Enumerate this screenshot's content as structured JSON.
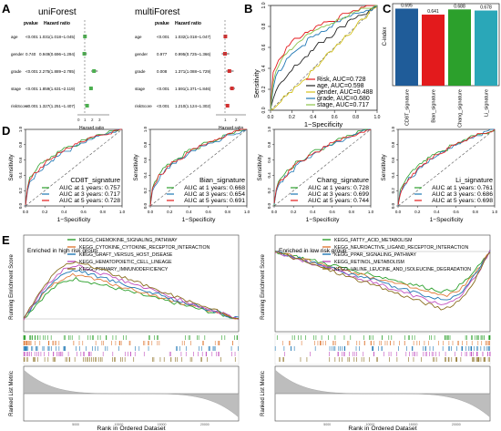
{
  "panels": {
    "A": {
      "letter": "A",
      "left": {
        "title": "uniForest",
        "col_pvalue": "pvalue",
        "col_hr": "Hazard ratio",
        "xlabel": "Hazard ratio",
        "rows": [
          {
            "var": "age",
            "p": "<0.001",
            "hr": "1.031(1.018~1.045)",
            "est": 1.031,
            "lo": 1.018,
            "hi": 1.045
          },
          {
            "var": "gender",
            "p": "0.740",
            "hr": "0.949(0.696~1.294)",
            "est": 0.949,
            "lo": 0.696,
            "hi": 1.294
          },
          {
            "var": "grade",
            "p": "<0.001",
            "hr": "2.275(1.889~2.785)",
            "est": 2.275,
            "lo": 1.889,
            "hi": 2.785
          },
          {
            "var": "stage",
            "p": "<0.001",
            "hr": "1.859(1.631~2.119)",
            "est": 1.859,
            "lo": 1.631,
            "hi": 2.119
          },
          {
            "var": "riskScore",
            "p": "<0.001",
            "hr": "1.327(1.251~1.407)",
            "est": 1.327,
            "lo": 1.251,
            "hi": 1.407
          }
        ]
      },
      "right": {
        "title": "multiForest",
        "col_pvalue": "pvalue",
        "col_hr": "Hazard ratio",
        "xlabel": "Hazard ratio",
        "rows": [
          {
            "var": "age",
            "p": "<0.001",
            "hr": "1.032(1.018~1.047)",
            "est": 1.032,
            "lo": 1.018,
            "hi": 1.047
          },
          {
            "var": "gender",
            "p": "0.977",
            "hr": "0.995(0.725~1.366)",
            "est": 0.995,
            "lo": 0.725,
            "hi": 1.366
          },
          {
            "var": "grade",
            "p": "0.008",
            "hr": "1.371(1.088~1.729)",
            "est": 1.371,
            "lo": 1.088,
            "hi": 1.729
          },
          {
            "var": "stage",
            "p": "<0.001",
            "hr": "1.591(1.371~1.846)",
            "est": 1.591,
            "lo": 1.371,
            "hi": 1.846
          },
          {
            "var": "riskScore",
            "p": "<0.001",
            "hr": "1.210(1.124~1.302)",
            "est": 1.21,
            "lo": 1.124,
            "hi": 1.302
          }
        ]
      }
    },
    "B": {
      "letter": "B",
      "ylabel": "Sensitivity",
      "xlabel": "1−Specificity",
      "ticks": [
        "0.0",
        "0.2",
        "0.4",
        "0.6",
        "0.8",
        "1.0"
      ],
      "legend": [
        {
          "label": "Risk, AUC=0.728",
          "color": "#e41a1c"
        },
        {
          "label": "age, AUC=0.598",
          "color": "#222222"
        },
        {
          "label": "gender, AUC=0.488",
          "color": "#d4c21a"
        },
        {
          "label": "grade, AUC=0.680",
          "color": "#1f77b4"
        },
        {
          "label": "stage, AUC=0.717",
          "color": "#8bc34a"
        }
      ]
    },
    "C": {
      "letter": "C",
      "ylabel": "C-index",
      "chart_data": {
        "type": "bar",
        "categories": [
          "CD8T_signature",
          "Bian_signature",
          "Chang_signature",
          "Li_signature"
        ],
        "values": [
          0.695,
          0.641,
          0.688,
          0.678
        ],
        "labels": [
          "0.695",
          "0.641",
          "0.688",
          "0.678"
        ],
        "colors": [
          "#1f5c99",
          "#e31a1c",
          "#2ca02c",
          "#2aa7b8"
        ]
      }
    },
    "D": {
      "letter": "D",
      "ylabel": "Sensitivity",
      "xlabel": "1−Specificity",
      "yticks": [
        "0.0",
        "0.2",
        "0.4",
        "0.6",
        "0.8",
        "1.0"
      ],
      "xticks": [
        "0.0",
        "0.2",
        "0.4",
        "0.6",
        "0.8",
        "1.0"
      ],
      "plots": [
        {
          "name": "CD8T_signature",
          "lines": [
            "AUC at 1 years: 0.757",
            "AUC at 3 years: 0.717",
            "AUC at 5 years: 0.728"
          ]
        },
        {
          "name": "Bian_signature",
          "lines": [
            "AUC at 1 years: 0.668",
            "AUC at 3 years: 0.654",
            "AUC at 5 years: 0.691"
          ]
        },
        {
          "name": "Chang_signature",
          "lines": [
            "AUC at 1 years: 0.728",
            "AUC at 3 years: 0.699",
            "AUC at 5 years: 0.744"
          ]
        },
        {
          "name": "Li_signature",
          "lines": [
            "AUC at 1 years: 0.761",
            "AUC at 3 years: 0.686",
            "AUC at 5 years: 0.698"
          ]
        }
      ],
      "colors": [
        "#2ca02c",
        "#1f77b4",
        "#e41a1c"
      ]
    },
    "E": {
      "letter": "E",
      "ylabel_top": "Running Enrichment Score",
      "ylabel_bottom": "Ranked List Metric",
      "xlabel": "Rank in Ordered Dataset",
      "left": {
        "group": "Enriched in high risk group",
        "sets": [
          {
            "name": "KEGG_CHEMOKINE_SIGNALING_PATHWAY",
            "color": "#2ca02c"
          },
          {
            "name": "KEGG_CYTOKINE_CYTOKINE_RECEPTOR_INTERACTION",
            "color": "#e07b39"
          },
          {
            "name": "KEGG_GRAFT_VERSUS_HOST_DISEASE",
            "color": "#1f77b4"
          },
          {
            "name": "KEGG_HEMATOPOIETIC_CELL_LINEAGE",
            "color": "#c04fbf"
          },
          {
            "name": "KEGG_PRIMARY_IMMUNODEFICIENCY",
            "color": "#8a6d1e"
          }
        ]
      },
      "right": {
        "group": "Enriched in low risk group",
        "sets": [
          {
            "name": "KEGG_FATTY_ACID_METABOLISM",
            "color": "#2ca02c"
          },
          {
            "name": "KEGG_NEUROACTIVE_LIGAND_RECEPTOR_INTERACTION",
            "color": "#e07b39"
          },
          {
            "name": "KEGG_PPAR_SIGNALING_PATHWAY",
            "color": "#1f77b4"
          },
          {
            "name": "KEGG_RETINOL_METABOLISM",
            "color": "#c04fbf"
          },
          {
            "name": "KEGG_VALINE_LEUCINE_AND_ISOLEUCINE_DEGRADATION",
            "color": "#8a6d1e"
          }
        ]
      }
    }
  }
}
